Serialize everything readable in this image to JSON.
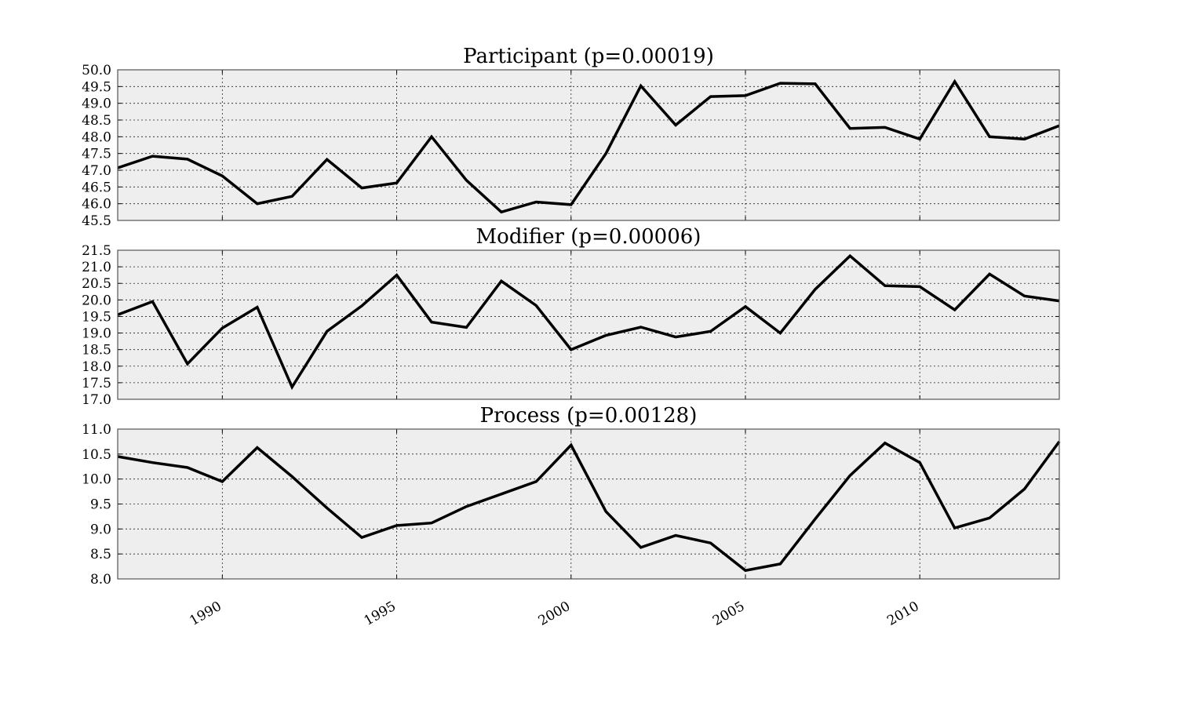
{
  "chart_data": [
    {
      "type": "line",
      "title": "Participant (p=0.00019)",
      "x": [
        1987,
        1988,
        1989,
        1990,
        1991,
        1992,
        1993,
        1994,
        1995,
        1996,
        1997,
        1998,
        1999,
        2000,
        2001,
        2002,
        2003,
        2004,
        2005,
        2006,
        2007,
        2008,
        2009,
        2010,
        2011,
        2012,
        2013,
        2014
      ],
      "values": [
        47.07,
        47.42,
        47.33,
        46.83,
        46.0,
        46.22,
        47.32,
        46.47,
        46.62,
        48.0,
        46.7,
        45.75,
        46.05,
        45.97,
        47.5,
        49.52,
        48.35,
        49.2,
        49.23,
        49.6,
        49.58,
        48.25,
        48.28,
        47.93,
        49.65,
        48.0,
        47.93,
        48.33
      ],
      "xlim": [
        1987,
        2014
      ],
      "ylim": [
        45.5,
        50.0
      ],
      "yticks": [
        "45.5",
        "46.0",
        "46.5",
        "47.0",
        "47.5",
        "48.0",
        "48.5",
        "49.0",
        "49.5",
        "50.0"
      ],
      "grid": true
    },
    {
      "type": "line",
      "title": "Modifier (p=0.00006)",
      "x": [
        1987,
        1988,
        1989,
        1990,
        1991,
        1992,
        1993,
        1994,
        1995,
        1996,
        1997,
        1998,
        1999,
        2000,
        2001,
        2002,
        2003,
        2004,
        2005,
        2006,
        2007,
        2008,
        2009,
        2010,
        2011,
        2012,
        2013,
        2014
      ],
      "values": [
        19.55,
        19.95,
        18.07,
        19.15,
        19.78,
        17.37,
        19.05,
        19.82,
        20.75,
        19.33,
        19.17,
        20.57,
        19.83,
        18.5,
        18.93,
        19.18,
        18.88,
        19.05,
        19.8,
        19.0,
        20.32,
        21.33,
        20.43,
        20.4,
        19.7,
        20.78,
        20.12,
        19.97
      ],
      "xlim": [
        1987,
        2014
      ],
      "ylim": [
        17.0,
        21.5
      ],
      "yticks": [
        "17.0",
        "17.5",
        "18.0",
        "18.5",
        "19.0",
        "19.5",
        "20.0",
        "20.5",
        "21.0",
        "21.5"
      ],
      "grid": true
    },
    {
      "type": "line",
      "title": "Process (p=0.00128)",
      "x": [
        1987,
        1988,
        1989,
        1990,
        1991,
        1992,
        1993,
        1994,
        1995,
        1996,
        1997,
        1998,
        1999,
        2000,
        2001,
        2002,
        2003,
        2004,
        2005,
        2006,
        2007,
        2008,
        2009,
        2010,
        2011,
        2012,
        2013,
        2014
      ],
      "values": [
        10.45,
        10.33,
        10.23,
        9.95,
        10.63,
        10.05,
        9.42,
        8.83,
        9.07,
        9.12,
        9.45,
        9.7,
        9.95,
        10.68,
        9.35,
        8.63,
        8.87,
        8.72,
        8.17,
        8.3,
        9.2,
        10.07,
        10.72,
        10.33,
        9.02,
        9.22,
        9.8,
        10.75
      ],
      "xlim": [
        1987,
        2014
      ],
      "ylim": [
        8.0,
        11.0
      ],
      "yticks": [
        "8.0",
        "8.5",
        "9.0",
        "9.5",
        "10.0",
        "10.5",
        "11.0"
      ],
      "grid": true
    }
  ],
  "xaxis": {
    "tick_values": [
      1990,
      1995,
      2000,
      2005,
      2010
    ],
    "tick_labels": [
      "1990",
      "1995",
      "2000",
      "2005",
      "2010"
    ]
  }
}
